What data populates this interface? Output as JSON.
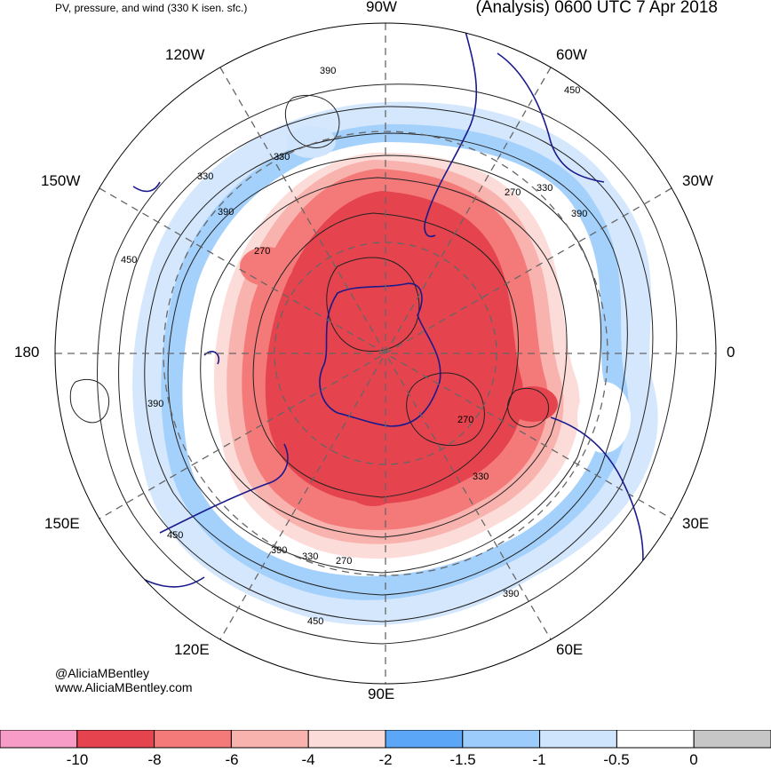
{
  "header": {
    "left": "PV, pressure, and wind (330 K isen. sfc.)",
    "right": "(Analysis) 0600 UTC 7 Apr 2018"
  },
  "longitude_labels": {
    "lon_90w": "90W",
    "lon_60w": "60W",
    "lon_30w": "30W",
    "lon_0": "0",
    "lon_30e": "30E",
    "lon_60e": "60E",
    "lon_90e": "90E",
    "lon_120e": "120E",
    "lon_150e": "150E",
    "lon_180": "180",
    "lon_150w": "150W",
    "lon_120w": "120W"
  },
  "contour_labels": [
    "390",
    "450",
    "330",
    "270",
    "330",
    "390",
    "390",
    "270",
    "330",
    "270",
    "330",
    "390",
    "450",
    "390",
    "450",
    "390"
  ],
  "credits": {
    "author": "@AliciaMBentley",
    "site": "www.AliciaMBentley.com"
  },
  "legend": {
    "ticks": [
      "-10",
      "-8",
      "-6",
      "-4",
      "-2",
      "-1.5",
      "-1",
      "-0.5",
      "0"
    ],
    "colors": [
      "#f79bc7",
      "#e5444e",
      "#f47a7a",
      "#f9b3ae",
      "#fcdcd8",
      "#5ba6f7",
      "#9bccfb",
      "#cfe4fd",
      "#ffffff",
      "#c6c6c6"
    ]
  },
  "palette": {
    "pv_strong": "#e5444e",
    "pv_mid": "#f47a7a",
    "pv_weak": "#f9b3ae",
    "pv_faint": "#fcdcd8",
    "blue_dark": "#5ba6f7",
    "blue_mid": "#9bccfb",
    "blue_light": "#cfe4fd",
    "coast": "#1a1a8c"
  }
}
